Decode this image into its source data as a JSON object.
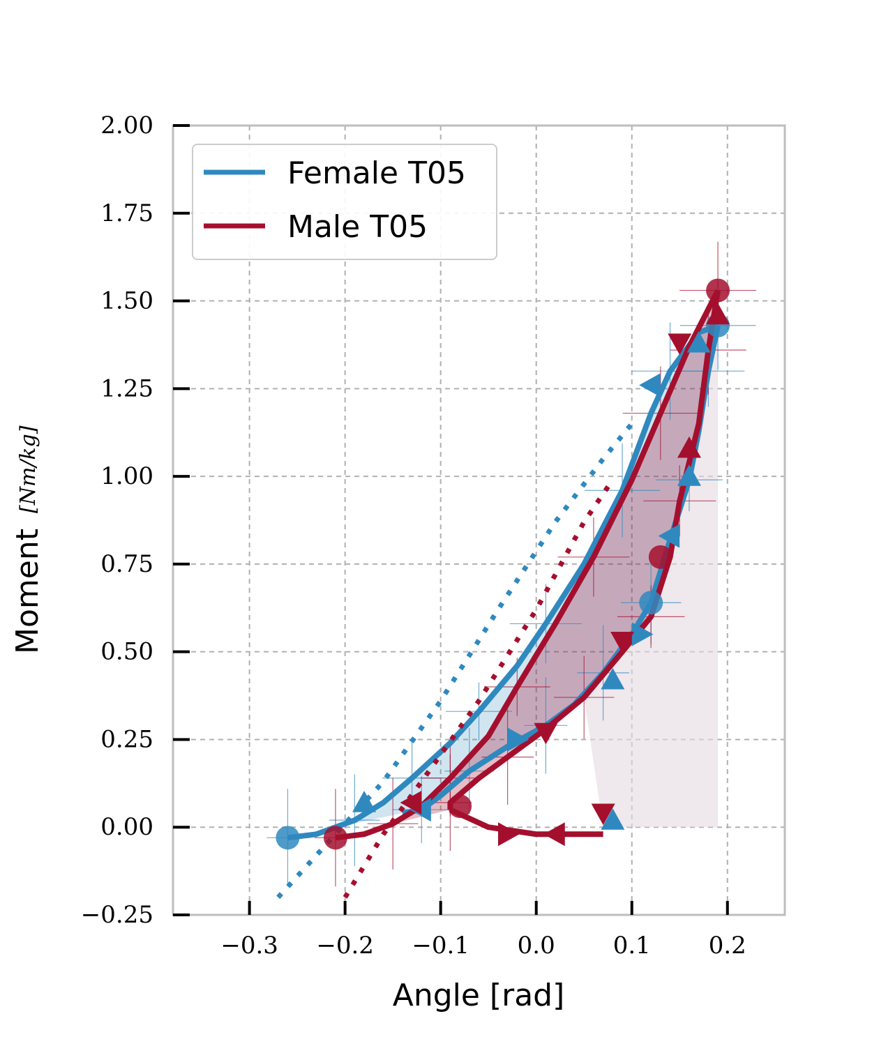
{
  "chart_data": {
    "type": "line",
    "xlabel": "Angle [rad]",
    "ylabel_text": "Moment",
    "ylabel_units": "[Nm/kg]",
    "xlim": [
      -0.38,
      0.26
    ],
    "ylim": [
      -0.25,
      2.0
    ],
    "x_ticks": [
      "−0.3",
      "−0.2",
      "−0.1",
      "0.0",
      "0.1",
      "0.2"
    ],
    "x_tick_values": [
      -0.3,
      -0.2,
      -0.1,
      0.0,
      0.1,
      0.2
    ],
    "y_ticks": [
      "−0.25",
      "0.00",
      "0.25",
      "0.50",
      "0.75",
      "1.00",
      "1.25",
      "1.50",
      "1.75",
      "2.00"
    ],
    "y_tick_values": [
      -0.25,
      0.0,
      0.25,
      0.5,
      0.75,
      1.0,
      1.25,
      1.5,
      1.75,
      2.0
    ],
    "grid": true,
    "legend_position": "top-left",
    "series": [
      {
        "name": "Female T05",
        "color": "#2f89bf",
        "loading": [
          [
            -0.26,
            -0.03
          ],
          [
            -0.23,
            -0.02
          ],
          [
            -0.19,
            0.02
          ],
          [
            -0.16,
            0.07
          ],
          [
            -0.13,
            0.14
          ],
          [
            -0.09,
            0.24
          ],
          [
            -0.06,
            0.33
          ],
          [
            -0.02,
            0.46
          ],
          [
            0.01,
            0.58
          ],
          [
            0.05,
            0.75
          ],
          [
            0.09,
            0.96
          ],
          [
            0.12,
            1.18
          ],
          [
            0.14,
            1.3
          ],
          [
            0.17,
            1.41
          ],
          [
            0.19,
            1.43
          ]
        ],
        "unloading": [
          [
            0.19,
            1.43
          ],
          [
            0.18,
            1.3
          ],
          [
            0.17,
            1.13
          ],
          [
            0.16,
            0.99
          ],
          [
            0.14,
            0.82
          ],
          [
            0.12,
            0.64
          ],
          [
            0.1,
            0.55
          ],
          [
            0.07,
            0.44
          ],
          [
            0.04,
            0.35
          ],
          [
            0.01,
            0.29
          ],
          [
            -0.03,
            0.23
          ],
          [
            -0.07,
            0.16
          ],
          [
            -0.1,
            0.09
          ],
          [
            -0.12,
            0.05
          ],
          [
            -0.14,
            0.04
          ]
        ],
        "fit": [
          [
            -0.27,
            -0.2
          ],
          [
            -0.22,
            -0.05
          ],
          [
            -0.16,
            0.13
          ],
          [
            -0.1,
            0.36
          ],
          [
            -0.04,
            0.62
          ],
          [
            0.02,
            0.87
          ],
          [
            0.07,
            1.05
          ],
          [
            0.1,
            1.15
          ]
        ],
        "markers": [
          [
            -0.26,
            -0.03,
            "circle"
          ],
          [
            -0.18,
            0.07,
            "triangle-up"
          ],
          [
            -0.12,
            0.05,
            "triangle-left"
          ],
          [
            -0.02,
            0.25,
            "triangle-right"
          ],
          [
            0.08,
            0.42,
            "triangle-up"
          ],
          [
            0.11,
            0.55,
            "triangle-right"
          ],
          [
            0.12,
            0.64,
            "circle"
          ],
          [
            0.16,
            1.0,
            "triangle-up"
          ],
          [
            0.14,
            0.83,
            "triangle-left"
          ],
          [
            0.12,
            1.26,
            "triangle-left"
          ],
          [
            0.19,
            1.43,
            "circle"
          ],
          [
            0.17,
            1.38,
            "triangle-up"
          ],
          [
            0.08,
            0.02,
            "triangle-up"
          ]
        ]
      },
      {
        "name": "Male T05",
        "color": "#a50f2e",
        "loading": [
          [
            -0.21,
            -0.03
          ],
          [
            -0.18,
            -0.02
          ],
          [
            -0.15,
            0.01
          ],
          [
            -0.12,
            0.06
          ],
          [
            -0.09,
            0.14
          ],
          [
            -0.05,
            0.26
          ],
          [
            -0.02,
            0.4
          ],
          [
            0.02,
            0.58
          ],
          [
            0.06,
            0.77
          ],
          [
            0.1,
            0.99
          ],
          [
            0.13,
            1.18
          ],
          [
            0.16,
            1.37
          ],
          [
            0.19,
            1.53
          ]
        ],
        "unloading": [
          [
            0.19,
            1.53
          ],
          [
            0.18,
            1.36
          ],
          [
            0.17,
            1.15
          ],
          [
            0.15,
            0.93
          ],
          [
            0.14,
            0.77
          ],
          [
            0.12,
            0.6
          ],
          [
            0.09,
            0.5
          ],
          [
            0.05,
            0.37
          ],
          [
            0.01,
            0.28
          ],
          [
            -0.03,
            0.2
          ],
          [
            -0.06,
            0.14
          ],
          [
            -0.09,
            0.07
          ],
          [
            -0.09,
            0.05
          ]
        ],
        "flat": [
          [
            -0.09,
            0.05
          ],
          [
            -0.05,
            0.0
          ],
          [
            0.0,
            -0.02
          ],
          [
            0.05,
            -0.02
          ],
          [
            0.07,
            -0.02
          ]
        ],
        "fit": [
          [
            -0.2,
            -0.2
          ],
          [
            -0.16,
            -0.02
          ],
          [
            -0.12,
            0.13
          ],
          [
            -0.06,
            0.36
          ],
          [
            0.0,
            0.62
          ],
          [
            0.05,
            0.87
          ],
          [
            0.08,
            0.99
          ]
        ],
        "markers": [
          [
            -0.21,
            -0.03,
            "circle"
          ],
          [
            -0.13,
            0.07,
            "triangle-left"
          ],
          [
            -0.08,
            0.06,
            "circle"
          ],
          [
            -0.03,
            -0.02,
            "triangle-right"
          ],
          [
            0.02,
            -0.02,
            "triangle-left"
          ],
          [
            0.07,
            0.04,
            "triangle-down"
          ],
          [
            0.01,
            0.27,
            "triangle-down"
          ],
          [
            0.09,
            0.53,
            "triangle-down"
          ],
          [
            0.13,
            0.77,
            "circle"
          ],
          [
            0.16,
            1.08,
            "triangle-up"
          ],
          [
            0.15,
            1.38,
            "triangle-down"
          ],
          [
            0.19,
            1.53,
            "circle"
          ],
          [
            0.19,
            1.46,
            "triangle-up"
          ]
        ]
      }
    ]
  }
}
